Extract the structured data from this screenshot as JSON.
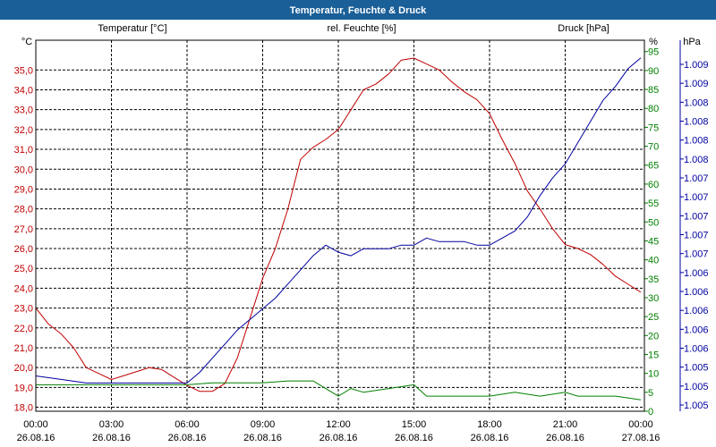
{
  "window": {
    "title": "Temperatur, Feuchte & Druck"
  },
  "colors": {
    "temperature": "#c00000",
    "humidity": "#008000",
    "pressure": "#0000a0",
    "grid": "#000000"
  },
  "chart_data": {
    "type": "line",
    "title": "Temperatur, Feuchte & Druck",
    "x_ticks": [
      {
        "time": "00:00",
        "date": "26.08.16"
      },
      {
        "time": "03:00",
        "date": "26.08.16"
      },
      {
        "time": "06:00",
        "date": "26.08.16"
      },
      {
        "time": "09:00",
        "date": "26.08.16"
      },
      {
        "time": "12:00",
        "date": "26.08.16"
      },
      {
        "time": "15:00",
        "date": "26.08.16"
      },
      {
        "time": "18:00",
        "date": "26.08.16"
      },
      {
        "time": "21:00",
        "date": "26.08.16"
      },
      {
        "time": "00:00",
        "date": "27.08.16"
      }
    ],
    "x_range_hours": [
      0,
      24
    ],
    "axes": {
      "temperature": {
        "label": "Temperatur [°C]",
        "unit": "°C",
        "range": [
          17.8,
          36.5
        ],
        "ticks": [
          "18,0",
          "19,0",
          "20,0",
          "21,0",
          "22,0",
          "23,0",
          "24,0",
          "25,0",
          "26,0",
          "27,0",
          "28,0",
          "29,0",
          "30,0",
          "31,0",
          "32,0",
          "33,0",
          "34,0",
          "35,0"
        ]
      },
      "humidity": {
        "label": "rel. Feuchte [%]",
        "unit": "%",
        "range": [
          0,
          98
        ],
        "ticks": [
          "0",
          "5",
          "10",
          "15",
          "20",
          "25",
          "30",
          "35",
          "40",
          "45",
          "50",
          "55",
          "60",
          "65",
          "70",
          "75",
          "80",
          "85",
          "90",
          "95"
        ]
      },
      "pressure": {
        "label": "Druck [hPa]",
        "unit": "hPa",
        "range": [
          1004.5,
          1009.75
        ],
        "ticks": [
          "1.005",
          "1.005",
          "1.005",
          "1.006",
          "1.006",
          "1.006",
          "1.006",
          "1.006",
          "1.007",
          "1.007",
          "1.007",
          "1.007",
          "1.007",
          "1.008",
          "1.008",
          "1.008",
          "1.008",
          "1.009",
          "1.009"
        ]
      }
    },
    "series": [
      {
        "name": "Temperatur",
        "axis": "temperature",
        "x": [
          0,
          0.5,
          1,
          1.5,
          2,
          2.5,
          3,
          3.5,
          4,
          4.5,
          5,
          5.5,
          6,
          6.5,
          7,
          7.5,
          8,
          8.5,
          9,
          9.5,
          10,
          10.5,
          11,
          11.5,
          12,
          12.5,
          13,
          13.5,
          14,
          14.5,
          15,
          15.5,
          16,
          16.5,
          17,
          17.5,
          18,
          18.5,
          19,
          19.5,
          20,
          20.5,
          21,
          21.5,
          22,
          22.5,
          23,
          23.5,
          24
        ],
        "values": [
          23.0,
          22.2,
          21.7,
          21.0,
          20.0,
          19.7,
          19.4,
          19.6,
          19.8,
          20.0,
          19.9,
          19.5,
          19.1,
          18.8,
          18.8,
          19.2,
          20.5,
          22.5,
          24.5,
          26.0,
          28.0,
          30.5,
          31.1,
          31.5,
          32.0,
          33.0,
          34.0,
          34.3,
          34.8,
          35.5,
          35.6,
          35.3,
          35.0,
          34.4,
          33.9,
          33.5,
          32.8,
          31.5,
          30.3,
          28.9,
          28.0,
          27.0,
          26.2,
          26.0,
          25.7,
          25.2,
          24.6,
          24.2,
          23.8
        ]
      },
      {
        "name": "rel. Feuchte",
        "axis": "humidity",
        "x": [
          0,
          1,
          2,
          3,
          4,
          5,
          6,
          7,
          8,
          9,
          10,
          11,
          11.5,
          12,
          12.5,
          13,
          14,
          15,
          15.5,
          16,
          17,
          18,
          19,
          20,
          21,
          21.5,
          22,
          23,
          24
        ],
        "values": [
          7,
          7,
          7,
          7,
          7,
          7,
          7,
          7.5,
          7.5,
          7.5,
          8,
          8,
          6,
          4,
          6,
          5,
          6,
          7,
          4,
          4,
          4,
          4,
          5,
          4,
          5,
          4,
          4,
          4,
          3
        ]
      },
      {
        "name": "Druck",
        "axis": "pressure",
        "x": [
          0,
          1,
          2,
          3,
          4,
          5,
          6,
          6.5,
          7,
          7.5,
          8,
          8.5,
          9,
          9.5,
          10,
          10.5,
          11,
          11.5,
          12,
          12.5,
          13,
          13.5,
          14,
          14.5,
          15,
          15.5,
          16,
          16.5,
          17,
          17.5,
          18,
          18.5,
          19,
          19.5,
          20,
          20.5,
          21,
          21.5,
          22,
          22.5,
          23,
          23.5,
          24
        ],
        "values": [
          1005.0,
          1004.95,
          1004.9,
          1004.9,
          1004.9,
          1004.9,
          1004.9,
          1005.05,
          1005.25,
          1005.45,
          1005.65,
          1005.8,
          1005.95,
          1006.1,
          1006.3,
          1006.5,
          1006.7,
          1006.85,
          1006.75,
          1006.7,
          1006.8,
          1006.8,
          1006.8,
          1006.85,
          1006.85,
          1006.95,
          1006.9,
          1006.9,
          1006.9,
          1006.85,
          1006.85,
          1006.95,
          1007.05,
          1007.25,
          1007.55,
          1007.8,
          1008.0,
          1008.3,
          1008.6,
          1008.9,
          1009.1,
          1009.35,
          1009.5
        ]
      }
    ]
  }
}
